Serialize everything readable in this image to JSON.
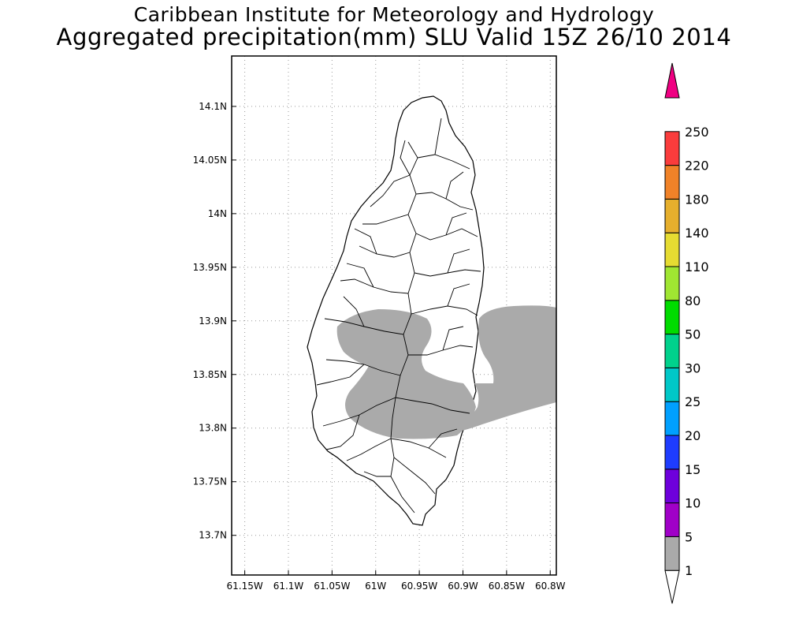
{
  "title": "Caribbean Institute for Meteorology and Hydrology",
  "subtitle": "Aggregated precipitation(mm) SLU Valid 15Z 26/10 2014",
  "map": {
    "lon_range": [
      -61.165,
      -60.793
    ],
    "lat_range": [
      13.663,
      14.147
    ],
    "lon_ticks": [
      {
        "v": -61.15,
        "label": "61.15W"
      },
      {
        "v": -61.1,
        "label": "61.1W"
      },
      {
        "v": -61.05,
        "label": "61.05W"
      },
      {
        "v": -61.0,
        "label": "61W"
      },
      {
        "v": -60.95,
        "label": "60.95W"
      },
      {
        "v": -60.9,
        "label": "60.9W"
      },
      {
        "v": -60.85,
        "label": "60.85W"
      },
      {
        "v": -60.8,
        "label": "60.8W"
      }
    ],
    "lat_ticks": [
      {
        "v": 14.1,
        "label": "14.1N"
      },
      {
        "v": 14.05,
        "label": "14.05N"
      },
      {
        "v": 14.0,
        "label": "14N"
      },
      {
        "v": 13.95,
        "label": "13.95N"
      },
      {
        "v": 13.9,
        "label": "13.9N"
      },
      {
        "v": 13.85,
        "label": "13.85N"
      },
      {
        "v": 13.8,
        "label": "13.8N"
      },
      {
        "v": 13.75,
        "label": "13.75N"
      },
      {
        "v": 13.7,
        "label": "13.7N"
      }
    ],
    "grid": "dotted",
    "land_color": "#ffffff",
    "precip_shading_color": "#aaaaaa",
    "precip_class": "1-5 mm"
  },
  "colorbar": {
    "levels": [
      "1",
      "5",
      "10",
      "15",
      "20",
      "25",
      "30",
      "50",
      "80",
      "110",
      "140",
      "180",
      "220",
      "250"
    ],
    "colors": [
      "#aaaaaa",
      "#a000c8",
      "#6e00dc",
      "#1e3cff",
      "#00a0ff",
      "#00c8c8",
      "#00d28c",
      "#00dc00",
      "#a0e632",
      "#e6dc32",
      "#e6af2d",
      "#f08228",
      "#fa3c3c",
      "#f00082"
    ],
    "under_color": "#ffffff"
  }
}
